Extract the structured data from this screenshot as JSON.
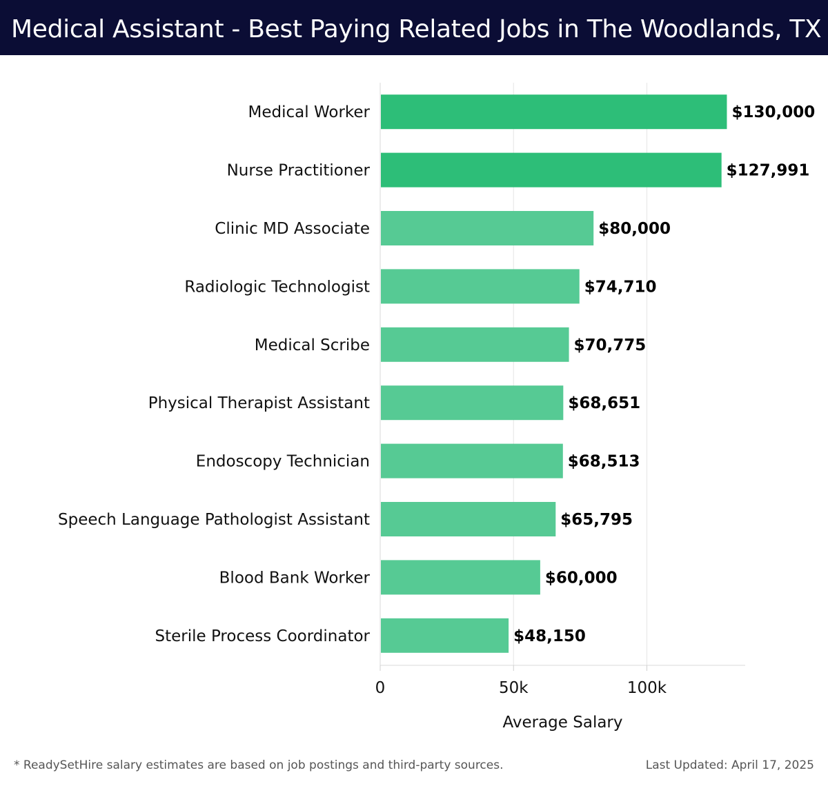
{
  "header": {
    "title": "Medical Assistant - Best Paying Related Jobs in The Woodlands, TX"
  },
  "footer": {
    "note": "* ReadySetHire salary estimates are based on job postings and third-party sources.",
    "updated": "Last Updated: April 17, 2025"
  },
  "colors": {
    "header_bg": "#0b0d35",
    "bar_top": "#2dbe78",
    "bar_other": "#4dc78e"
  },
  "chart_data": {
    "type": "bar",
    "orientation": "horizontal",
    "categories": [
      "Medical Worker",
      "Nurse Practitioner",
      "Clinic MD Associate",
      "Radiologic Technologist",
      "Medical Scribe",
      "Physical Therapist Assistant",
      "Endoscopy Technician",
      "Speech Language Pathologist Assistant",
      "Blood Bank Worker",
      "Sterile Process Coordinator"
    ],
    "values": [
      130000,
      127991,
      80000,
      74710,
      70775,
      68651,
      68513,
      65795,
      60000,
      48150
    ],
    "value_labels": [
      "$130,000",
      "$127,991",
      "$80,000",
      "$74,710",
      "$70,775",
      "$68,651",
      "$68,513",
      "$65,795",
      "$60,000",
      "$48,150"
    ],
    "xlabel": "Average Salary",
    "xlim": [
      0,
      137000
    ],
    "xticks": [
      0,
      50000,
      100000
    ],
    "xtick_labels": [
      "0",
      "50k",
      "100k"
    ],
    "grid": true
  }
}
